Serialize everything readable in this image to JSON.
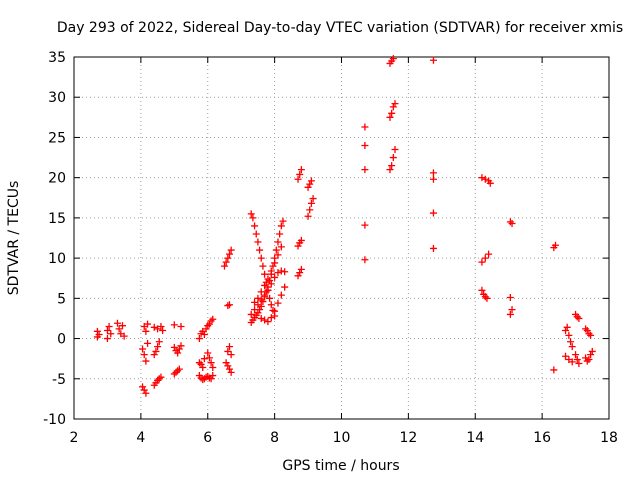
{
  "chart_data": {
    "type": "scatter",
    "title": "Day 293 of 2022, Sidereal Day-to-day VTEC variation (SDTVAR) for receiver xmis",
    "xlabel": "GPS time / hours",
    "ylabel": "SDTVAR / TECUs",
    "xlim": [
      2,
      18
    ],
    "ylim": [
      -10,
      35
    ],
    "xticks": [
      "2",
      "4",
      "6",
      "8",
      "10",
      "12",
      "14",
      "16",
      "18"
    ],
    "yticks": [
      "-10",
      "-5",
      "0",
      "5",
      "10",
      "15",
      "20",
      "25",
      "30",
      "35"
    ],
    "grid": true,
    "marker": "+",
    "marker_color": "#ff0000",
    "series": [
      {
        "points": [
          [
            2.7,
            0.2
          ],
          [
            2.7,
            0.9
          ],
          [
            2.75,
            0.5
          ],
          [
            3.0,
            0.0
          ],
          [
            3.0,
            1.0
          ],
          [
            3.05,
            1.5
          ],
          [
            3.1,
            0.6
          ],
          [
            3.3,
            1.9
          ],
          [
            3.35,
            1.2
          ],
          [
            3.4,
            0.6
          ],
          [
            3.45,
            1.6
          ],
          [
            3.5,
            0.3
          ],
          [
            4.05,
            -1.3
          ],
          [
            4.1,
            -2.0
          ],
          [
            4.15,
            -2.8
          ],
          [
            4.2,
            -0.6
          ],
          [
            4.1,
            1.5
          ],
          [
            4.15,
            0.9
          ],
          [
            4.2,
            1.8
          ],
          [
            4.05,
            -6.0
          ],
          [
            4.1,
            -6.4
          ],
          [
            4.15,
            -6.8
          ],
          [
            4.4,
            -5.8
          ],
          [
            4.45,
            -5.5
          ],
          [
            4.5,
            -5.2
          ],
          [
            4.55,
            -5.0
          ],
          [
            4.6,
            -4.8
          ],
          [
            4.4,
            -2.0
          ],
          [
            4.45,
            -1.6
          ],
          [
            4.5,
            -1.0
          ],
          [
            4.55,
            -0.4
          ],
          [
            4.4,
            1.4
          ],
          [
            4.5,
            1.2
          ],
          [
            4.6,
            1.5
          ],
          [
            4.65,
            1.0
          ],
          [
            5.0,
            -1.1
          ],
          [
            5.05,
            -1.5
          ],
          [
            5.1,
            -1.8
          ],
          [
            5.15,
            -1.3
          ],
          [
            5.2,
            -0.9
          ],
          [
            5.0,
            -4.4
          ],
          [
            5.05,
            -4.2
          ],
          [
            5.1,
            -4.0
          ],
          [
            5.15,
            -3.8
          ],
          [
            5.0,
            1.7
          ],
          [
            5.2,
            1.5
          ],
          [
            5.75,
            0.0
          ],
          [
            5.8,
            0.6
          ],
          [
            5.85,
            0.9
          ],
          [
            5.9,
            0.5
          ],
          [
            5.95,
            1.2
          ],
          [
            6.0,
            1.6
          ],
          [
            6.05,
            1.8
          ],
          [
            6.1,
            2.2
          ],
          [
            6.15,
            2.4
          ],
          [
            5.75,
            -3.0
          ],
          [
            5.8,
            -3.2
          ],
          [
            5.85,
            -3.6
          ],
          [
            5.9,
            -2.5
          ],
          [
            5.75,
            -4.6
          ],
          [
            5.8,
            -4.9
          ],
          [
            5.85,
            -5.1
          ],
          [
            5.9,
            -5.0
          ],
          [
            5.95,
            -4.8
          ],
          [
            6.0,
            -4.7
          ],
          [
            6.05,
            -4.9
          ],
          [
            6.1,
            -5.0
          ],
          [
            6.15,
            -4.6
          ],
          [
            6.0,
            -1.8
          ],
          [
            6.05,
            -2.4
          ],
          [
            6.1,
            -3.0
          ],
          [
            6.15,
            -3.6
          ],
          [
            6.55,
            -3.0
          ],
          [
            6.6,
            -3.4
          ],
          [
            6.65,
            -3.8
          ],
          [
            6.7,
            -4.2
          ],
          [
            6.6,
            -1.6
          ],
          [
            6.65,
            -1.0
          ],
          [
            6.7,
            -2.0
          ],
          [
            6.5,
            9.0
          ],
          [
            6.55,
            9.5
          ],
          [
            6.6,
            10.0
          ],
          [
            6.65,
            10.5
          ],
          [
            6.7,
            11.0
          ],
          [
            6.6,
            4.1
          ],
          [
            6.65,
            4.2
          ],
          [
            7.3,
            15.5
          ],
          [
            7.35,
            15.0
          ],
          [
            7.4,
            14.0
          ],
          [
            7.45,
            13.0
          ],
          [
            7.5,
            12.0
          ],
          [
            7.55,
            11.0
          ],
          [
            7.6,
            10.0
          ],
          [
            7.65,
            9.0
          ],
          [
            7.7,
            8.0
          ],
          [
            7.75,
            7.0
          ],
          [
            7.8,
            6.0
          ],
          [
            7.85,
            5.0
          ],
          [
            7.9,
            4.2
          ],
          [
            7.95,
            3.5
          ],
          [
            8.0,
            2.8
          ],
          [
            7.3,
            2.0
          ],
          [
            7.35,
            2.3
          ],
          [
            7.4,
            2.6
          ],
          [
            7.45,
            2.9
          ],
          [
            7.5,
            3.2
          ],
          [
            7.55,
            3.6
          ],
          [
            7.6,
            4.0
          ],
          [
            7.65,
            4.6
          ],
          [
            7.7,
            5.2
          ],
          [
            7.75,
            5.8
          ],
          [
            7.8,
            6.4
          ],
          [
            7.85,
            7.2
          ],
          [
            7.9,
            8.0
          ],
          [
            7.95,
            9.0
          ],
          [
            8.0,
            10.0
          ],
          [
            8.05,
            11.0
          ],
          [
            8.1,
            12.0
          ],
          [
            8.15,
            13.0
          ],
          [
            8.2,
            14.0
          ],
          [
            8.25,
            14.6
          ],
          [
            7.4,
            4.5
          ],
          [
            7.5,
            5.0
          ],
          [
            7.6,
            5.8
          ],
          [
            7.7,
            6.6
          ],
          [
            7.8,
            7.4
          ],
          [
            7.9,
            8.4
          ],
          [
            8.0,
            9.4
          ],
          [
            8.1,
            10.4
          ],
          [
            8.2,
            11.4
          ],
          [
            7.3,
            3.0
          ],
          [
            7.4,
            3.6
          ],
          [
            7.5,
            4.2
          ],
          [
            7.6,
            4.8
          ],
          [
            7.7,
            5.4
          ],
          [
            7.8,
            6.0
          ],
          [
            7.9,
            6.8
          ],
          [
            8.0,
            7.6
          ],
          [
            7.6,
            2.5
          ],
          [
            7.7,
            2.3
          ],
          [
            7.8,
            2.1
          ],
          [
            7.9,
            2.6
          ],
          [
            8.0,
            3.4
          ],
          [
            8.1,
            4.4
          ],
          [
            8.2,
            5.4
          ],
          [
            8.3,
            6.4
          ],
          [
            8.1,
            8.2
          ],
          [
            8.2,
            8.4
          ],
          [
            8.3,
            8.3
          ],
          [
            8.7,
            7.8
          ],
          [
            8.75,
            8.2
          ],
          [
            8.8,
            8.6
          ],
          [
            8.7,
            11.5
          ],
          [
            8.75,
            11.9
          ],
          [
            8.8,
            12.2
          ],
          [
            8.7,
            19.8
          ],
          [
            8.75,
            20.4
          ],
          [
            8.8,
            21.0
          ],
          [
            9.0,
            15.2
          ],
          [
            9.05,
            16.0
          ],
          [
            9.1,
            16.8
          ],
          [
            9.15,
            17.4
          ],
          [
            9.0,
            18.8
          ],
          [
            9.05,
            19.2
          ],
          [
            9.1,
            19.6
          ],
          [
            10.7,
            9.8
          ],
          [
            10.7,
            14.1
          ],
          [
            10.7,
            21.0
          ],
          [
            10.7,
            24.0
          ],
          [
            10.7,
            26.3
          ],
          [
            11.45,
            21.0
          ],
          [
            11.5,
            21.5
          ],
          [
            11.55,
            22.5
          ],
          [
            11.6,
            23.5
          ],
          [
            11.45,
            27.5
          ],
          [
            11.5,
            28.0
          ],
          [
            11.55,
            28.8
          ],
          [
            11.6,
            29.2
          ],
          [
            11.45,
            34.2
          ],
          [
            11.5,
            34.5
          ],
          [
            11.55,
            34.8
          ],
          [
            12.75,
            11.2
          ],
          [
            12.75,
            15.6
          ],
          [
            12.75,
            19.8
          ],
          [
            12.75,
            20.6
          ],
          [
            12.75,
            34.6
          ],
          [
            14.2,
            9.5
          ],
          [
            14.3,
            10.0
          ],
          [
            14.4,
            10.5
          ],
          [
            14.2,
            6.0
          ],
          [
            14.25,
            5.5
          ],
          [
            14.3,
            5.2
          ],
          [
            14.35,
            5.0
          ],
          [
            14.2,
            20.0
          ],
          [
            14.3,
            19.8
          ],
          [
            14.4,
            19.6
          ],
          [
            14.45,
            19.3
          ],
          [
            15.05,
            3.0
          ],
          [
            15.1,
            3.6
          ],
          [
            15.05,
            5.1
          ],
          [
            15.05,
            14.5
          ],
          [
            15.1,
            14.3
          ],
          [
            16.35,
            -3.9
          ],
          [
            16.35,
            11.3
          ],
          [
            16.4,
            11.6
          ],
          [
            16.7,
            1.0
          ],
          [
            16.75,
            1.4
          ],
          [
            16.8,
            0.4
          ],
          [
            16.85,
            -0.4
          ],
          [
            16.9,
            -1.0
          ],
          [
            16.7,
            -2.2
          ],
          [
            16.8,
            -2.6
          ],
          [
            16.9,
            -2.9
          ],
          [
            17.0,
            3.0
          ],
          [
            17.05,
            2.7
          ],
          [
            17.1,
            2.5
          ],
          [
            17.0,
            -2.0
          ],
          [
            17.05,
            -2.6
          ],
          [
            17.1,
            -3.1
          ],
          [
            17.3,
            1.2
          ],
          [
            17.35,
            1.0
          ],
          [
            17.4,
            0.6
          ],
          [
            17.45,
            0.4
          ],
          [
            17.3,
            -2.4
          ],
          [
            17.35,
            -2.8
          ],
          [
            17.4,
            -2.6
          ],
          [
            17.45,
            -2.0
          ],
          [
            17.5,
            -1.6
          ]
        ]
      }
    ]
  }
}
